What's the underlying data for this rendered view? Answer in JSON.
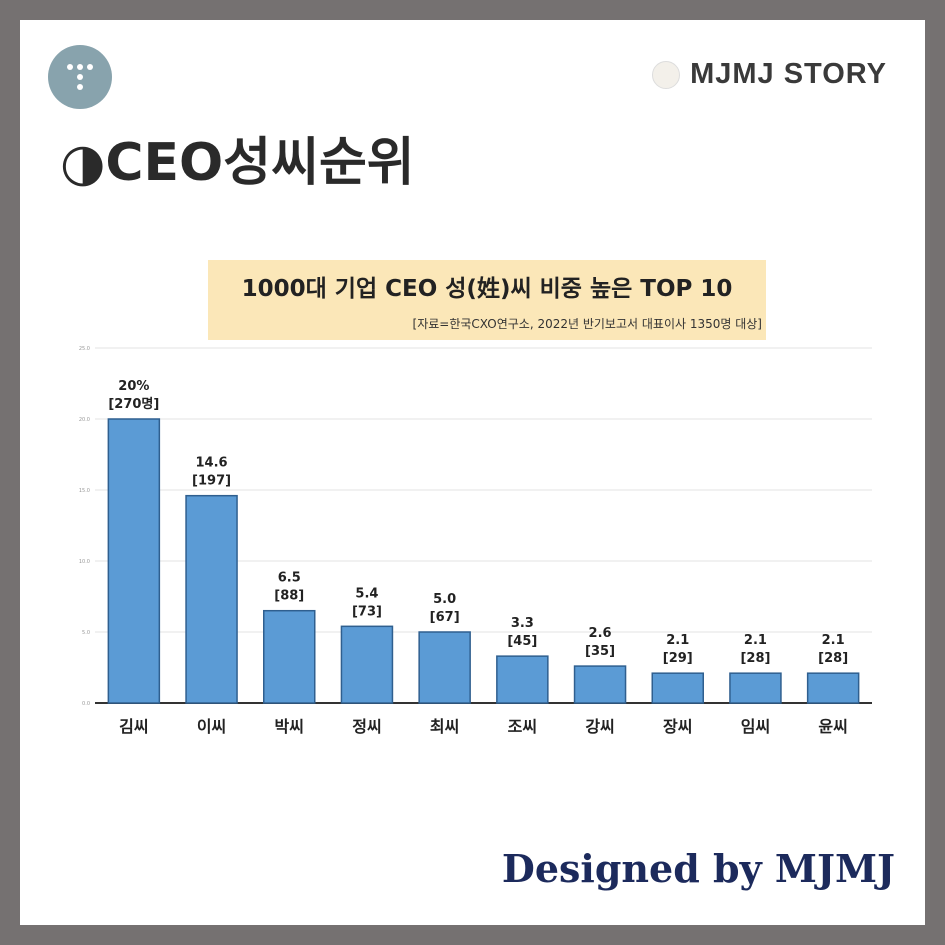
{
  "header": {
    "brand_text": "MJMJ STORY",
    "title": "◑CEO성씨순위",
    "logo_icon": "t-logo-icon"
  },
  "footer": {
    "credit": "Designed by MJMJ"
  },
  "colors": {
    "background_frame": "#757171",
    "bar_fill": "#5b9bd5",
    "bar_stroke": "#2f5f8f",
    "title_box": "#fbe7b8",
    "footer_text": "#1c2a5c"
  },
  "chart_data": {
    "type": "bar",
    "title": "1000대 기업 CEO 성(姓)씨 비중 높은 TOP 10",
    "subtitle": "[자료=한국CXO연구소, 2022년 반기보고서 대표이사 1350명 대상]",
    "categories": [
      "김씨",
      "이씨",
      "박씨",
      "정씨",
      "최씨",
      "조씨",
      "강씨",
      "장씨",
      "임씨",
      "윤씨"
    ],
    "values": [
      20,
      14.6,
      6.5,
      5.4,
      5.0,
      3.3,
      2.6,
      2.1,
      2.1,
      2.1
    ],
    "value_labels": [
      "20%",
      "14.6",
      "6.5",
      "5.4",
      "5.0",
      "3.3",
      "2.6",
      "2.1",
      "2.1",
      "2.1"
    ],
    "count_labels": [
      "[270명]",
      "[197]",
      "[88]",
      "[73]",
      "[67]",
      "[45]",
      "[35]",
      "[29]",
      "[28]",
      "[28]"
    ],
    "ylim": [
      0,
      25
    ],
    "yticks": [
      0,
      5,
      10,
      15,
      20,
      25
    ],
    "ytick_labels": [
      "0.0",
      "5.0",
      "10.0",
      "15.0",
      "20.0",
      "25.0"
    ],
    "grid": true,
    "xlabel": "",
    "ylabel": ""
  }
}
